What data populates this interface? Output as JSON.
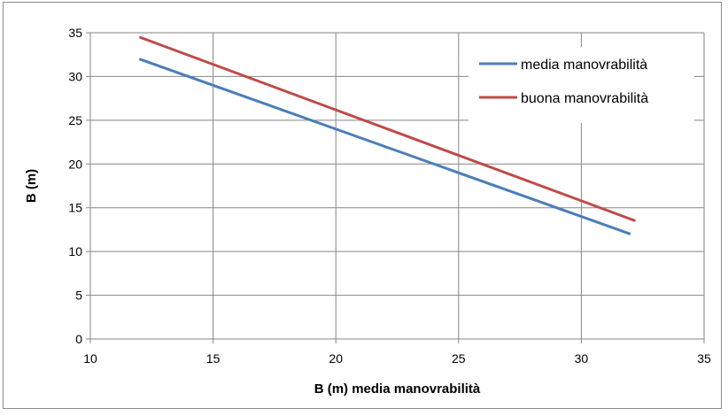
{
  "chart_data": {
    "type": "line",
    "title": "",
    "xlabel": "B (m) media manovrabilità",
    "ylabel": "B (m)",
    "xlim": [
      10,
      35
    ],
    "ylim": [
      0,
      35
    ],
    "x_ticks": [
      "10",
      "15",
      "20",
      "25",
      "30",
      "35"
    ],
    "y_ticks": [
      "0",
      "5",
      "10",
      "15",
      "20",
      "25",
      "30",
      "35"
    ],
    "grid": true,
    "legend_position": "top-right",
    "series": [
      {
        "name": "media manovrabilità",
        "color": "#4a7ebb",
        "x": [
          12,
          32
        ],
        "y": [
          32,
          12
        ]
      },
      {
        "name": "buona manovrabilità",
        "color": "#be4b48",
        "x": [
          12,
          32.2
        ],
        "y": [
          34.5,
          13.5
        ]
      }
    ]
  }
}
